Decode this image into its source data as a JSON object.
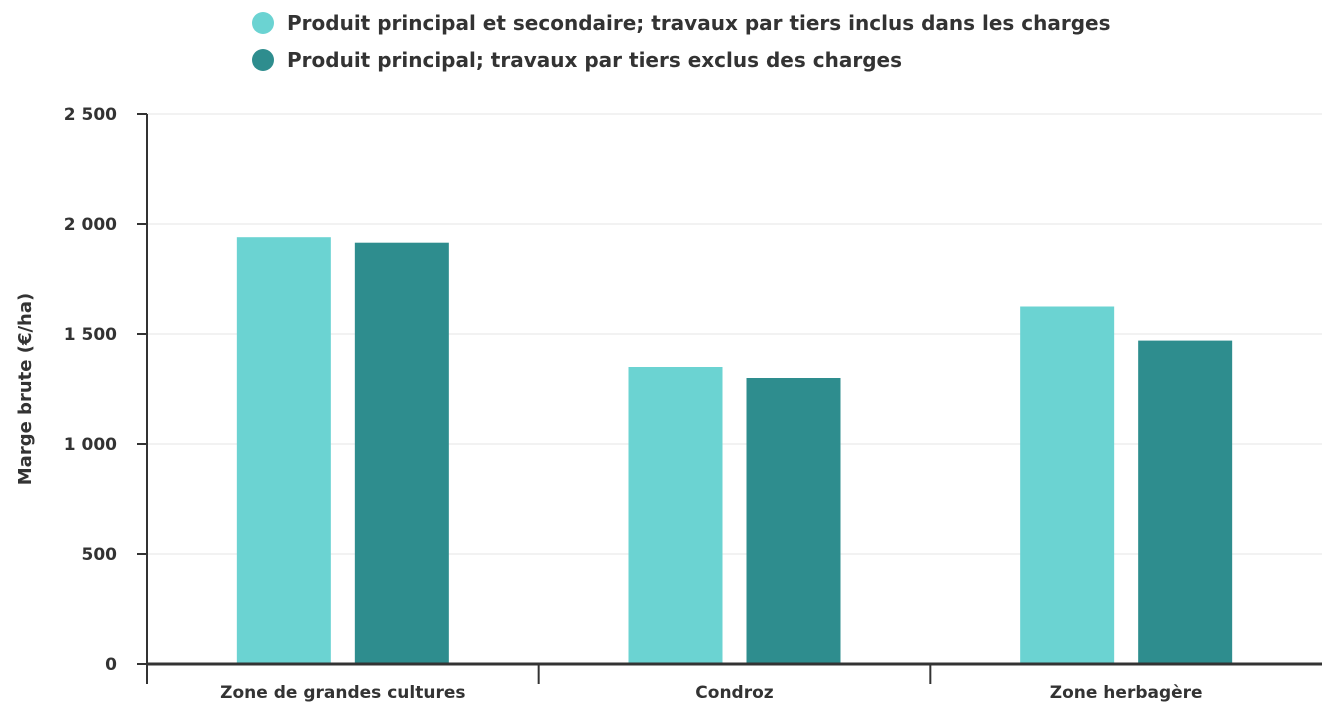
{
  "chart_data": {
    "type": "bar",
    "title": "",
    "xlabel": "",
    "ylabel": "Marge brute (€/ha)",
    "categories": [
      "Zone de grandes cultures",
      "Condroz",
      "Zone herbagère"
    ],
    "series": [
      {
        "name": "Produit principal et secondaire; travaux par tiers inclus dans les charges",
        "color": "#6bd3d2",
        "values": [
          1940,
          1350,
          1625
        ]
      },
      {
        "name": "Produit principal; travaux par tiers exclus des charges",
        "color": "#2e8d8e",
        "values": [
          1915,
          1300,
          1470
        ]
      }
    ],
    "ylim": [
      0,
      2500
    ],
    "yticks": [
      0,
      500,
      1000,
      1500,
      2000,
      2500
    ],
    "ytick_labels": [
      "0",
      "500",
      "1 000",
      "1 500",
      "2 000",
      "2 500"
    ],
    "grid": true,
    "legend_position": "top"
  }
}
